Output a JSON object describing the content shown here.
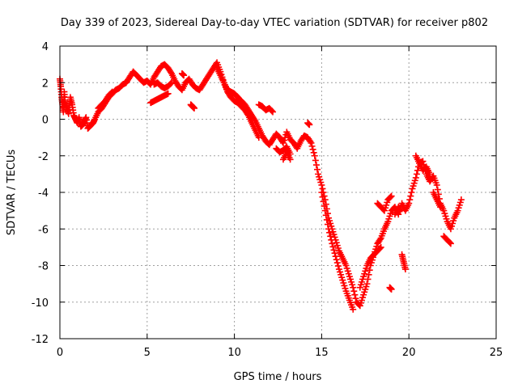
{
  "chart_data": {
    "type": "scatter",
    "title": "Day 339 of 2023, Sidereal Day-to-day VTEC variation (SDTVAR) for receiver p802",
    "xlabel": "GPS time / hours",
    "ylabel": "SDTVAR / TECUs",
    "xlim": [
      0,
      25
    ],
    "ylim": [
      -12,
      4
    ],
    "xticks": [
      "0",
      "5",
      "10",
      "15",
      "20",
      "25"
    ],
    "yticks": [
      "-12",
      "-10",
      "-8",
      "-6",
      "-4",
      "-2",
      "0",
      "2",
      "4"
    ],
    "grid": true,
    "marker": "plus",
    "color": "#ff0000",
    "series": [
      {
        "name": "SDTVAR",
        "x": [
          0.0,
          0.05,
          0.1,
          0.15,
          0.2,
          0.25,
          0.3,
          0.4,
          0.5,
          0.6,
          0.7,
          0.8,
          0.9,
          1.0,
          1.1,
          1.2,
          1.3,
          1.4,
          1.5,
          1.6,
          1.7,
          1.8,
          1.9,
          2.0,
          2.2,
          2.4,
          2.6,
          2.8,
          3.0,
          3.2,
          3.4,
          3.6,
          3.8,
          4.0,
          4.2,
          4.4,
          4.6,
          4.8,
          5.0,
          5.2,
          5.4,
          5.6,
          5.8,
          6.0,
          6.2,
          6.4,
          6.6,
          6.8,
          7.0,
          7.2,
          7.4,
          7.6,
          7.8,
          8.0,
          8.2,
          8.4,
          8.6,
          8.8,
          9.0,
          9.2,
          9.4,
          9.6,
          9.8,
          10.0,
          10.2,
          10.4,
          10.6,
          10.8,
          11.0,
          11.2,
          11.4,
          11.6,
          11.8,
          12.0,
          12.2,
          12.4,
          12.6,
          12.8,
          13.0,
          13.2,
          13.4,
          13.6,
          13.8,
          14.0,
          14.2,
          14.4,
          14.6,
          14.8,
          15.0,
          15.2,
          15.4,
          15.6,
          15.8,
          16.0,
          16.2,
          16.4,
          16.6,
          16.8,
          17.0,
          17.2,
          17.4,
          17.6,
          17.8,
          18.0,
          18.2,
          18.4,
          18.6,
          18.8,
          19.0,
          19.2,
          19.4,
          19.6,
          19.8,
          20.0,
          20.2,
          20.4,
          20.6,
          20.8,
          21.0,
          21.2,
          21.4,
          21.6,
          21.8,
          22.0,
          22.2,
          22.4,
          22.6,
          22.8,
          23.0
        ],
        "y": [
          2.2,
          1.8,
          1.2,
          0.8,
          0.4,
          1.5,
          0.9,
          0.6,
          0.3,
          1.2,
          0.8,
          0.2,
          0.0,
          -0.2,
          0.1,
          -0.4,
          -0.3,
          -0.1,
          0.1,
          -0.5,
          -0.4,
          -0.3,
          -0.2,
          0.0,
          0.4,
          0.6,
          0.9,
          1.2,
          1.4,
          1.6,
          1.7,
          1.9,
          2.0,
          2.3,
          2.6,
          2.4,
          2.2,
          2.0,
          2.1,
          1.9,
          2.3,
          2.6,
          2.9,
          3.0,
          2.8,
          2.5,
          2.1,
          1.8,
          1.6,
          2.0,
          2.2,
          1.9,
          1.7,
          1.6,
          1.9,
          2.2,
          2.5,
          2.8,
          3.1,
          2.6,
          2.0,
          1.6,
          1.5,
          1.4,
          1.2,
          1.0,
          0.8,
          0.5,
          0.2,
          -0.1,
          -0.5,
          -0.9,
          -1.2,
          -1.4,
          -1.1,
          -0.8,
          -1.0,
          -1.3,
          -0.7,
          -1.1,
          -1.3,
          -1.6,
          -1.2,
          -0.9,
          -1.0,
          -1.3,
          -2.0,
          -3.0,
          -3.6,
          -4.4,
          -5.4,
          -6.0,
          -6.6,
          -7.2,
          -7.6,
          -8.0,
          -8.6,
          -9.2,
          -10.0,
          -10.2,
          -9.6,
          -9.0,
          -8.0,
          -7.4,
          -6.8,
          -6.5,
          -6.0,
          -5.6,
          -5.0,
          -4.8,
          -5.2,
          -4.6,
          -5.0,
          -4.6,
          -3.8,
          -3.2,
          -2.4,
          -2.3,
          -3.0,
          -3.4,
          -3.1,
          -3.6,
          -4.6,
          -5.0,
          -5.6,
          -6.0,
          -5.4,
          -5.0,
          -4.4
        ],
        "fragments": [
          {
            "x": [
              2.2,
              2.4,
              2.6,
              2.8,
              3.0
            ],
            "y": [
              0.6,
              0.8,
              1.0,
              1.3,
              1.5
            ]
          },
          {
            "x": [
              5.2,
              5.4,
              5.6,
              5.8,
              6.0,
              6.2
            ],
            "y": [
              0.9,
              1.0,
              1.1,
              1.2,
              1.3,
              1.4
            ]
          },
          {
            "x": [
              5.4,
              5.6,
              5.8,
              6.0,
              6.2,
              6.4
            ],
            "y": [
              1.9,
              2.0,
              1.8,
              1.7,
              1.8,
              2.0
            ]
          },
          {
            "x": [
              7.0,
              7.1
            ],
            "y": [
              2.5,
              2.4
            ]
          },
          {
            "x": [
              7.5,
              7.6,
              7.7
            ],
            "y": [
              0.8,
              0.7,
              0.6
            ]
          },
          {
            "x": [
              9.0,
              9.2,
              9.4,
              9.6,
              9.8,
              10.0,
              10.2,
              10.4,
              10.6,
              10.8,
              11.0,
              11.2,
              11.4
            ],
            "y": [
              2.8,
              2.4,
              2.0,
              1.5,
              1.2,
              1.0,
              0.9,
              0.7,
              0.5,
              0.2,
              -0.2,
              -0.6,
              -1.0
            ]
          },
          {
            "x": [
              11.4,
              11.6,
              11.8,
              12.0,
              12.2
            ],
            "y": [
              0.8,
              0.7,
              0.5,
              0.6,
              0.4
            ]
          },
          {
            "x": [
              12.4,
              12.6,
              12.8,
              13.0,
              13.2
            ],
            "y": [
              -1.6,
              -1.8,
              -1.7,
              -1.5,
              -1.9
            ]
          },
          {
            "x": [
              12.8,
              13.0,
              13.2
            ],
            "y": [
              -2.2,
              -1.8,
              -2.2
            ]
          },
          {
            "x": [
              14.2,
              14.3
            ],
            "y": [
              -0.2,
              -0.3
            ]
          },
          {
            "x": [
              15.0,
              15.2,
              15.4,
              15.6,
              15.8,
              16.0,
              16.2,
              16.4,
              16.6,
              16.8
            ],
            "y": [
              -4.0,
              -5.0,
              -6.0,
              -6.8,
              -7.5,
              -8.2,
              -8.8,
              -9.4,
              -9.9,
              -10.4
            ]
          },
          {
            "x": [
              17.2,
              17.4,
              17.6,
              17.8,
              18.0,
              18.2,
              18.4
            ],
            "y": [
              -9.2,
              -8.6,
              -8.0,
              -7.6,
              -7.4,
              -7.2,
              -7.0
            ]
          },
          {
            "x": [
              18.2,
              18.4,
              18.6,
              18.8,
              19.0
            ],
            "y": [
              -4.6,
              -4.8,
              -5.0,
              -4.4,
              -4.2
            ]
          },
          {
            "x": [
              19.2,
              19.4,
              19.5
            ],
            "y": [
              -5.2,
              -4.8,
              -5.0
            ]
          },
          {
            "x": [
              18.9,
              19.0
            ],
            "y": [
              -9.2,
              -9.3
            ]
          },
          {
            "x": [
              19.6,
              19.7,
              19.8
            ],
            "y": [
              -7.4,
              -7.8,
              -8.2
            ]
          },
          {
            "x": [
              20.4,
              20.6,
              20.8,
              21.0,
              21.2
            ],
            "y": [
              -2.0,
              -2.4,
              -2.8,
              -2.6,
              -3.0
            ]
          },
          {
            "x": [
              21.4,
              21.6,
              21.8
            ],
            "y": [
              -4.0,
              -4.4,
              -4.8
            ]
          },
          {
            "x": [
              22.0,
              22.2,
              22.4
            ],
            "y": [
              -6.4,
              -6.6,
              -6.8
            ]
          }
        ]
      }
    ]
  }
}
